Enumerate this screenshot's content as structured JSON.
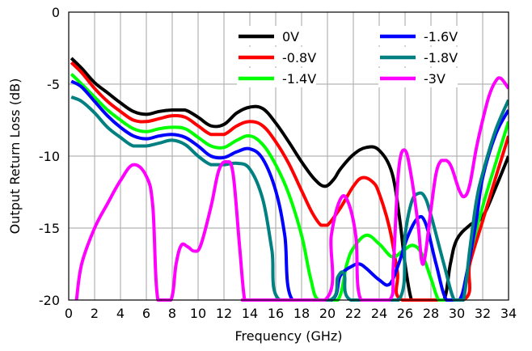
{
  "chart_data": {
    "type": "line",
    "title": "",
    "xlabel": "Frequency (GHz)",
    "ylabel": "Output Return Loss (dB)",
    "xlim": [
      0,
      34
    ],
    "ylim": [
      -20,
      0
    ],
    "xticks": [
      0,
      2,
      4,
      6,
      8,
      10,
      12,
      14,
      16,
      18,
      20,
      22,
      24,
      26,
      28,
      30,
      32,
      34
    ],
    "yticks": [
      0,
      -5,
      -10,
      -15,
      -20
    ],
    "grid": true,
    "legend_position": "top-right",
    "series": [
      {
        "name": "0V",
        "color": "#000000",
        "x": [
          0.2,
          1,
          2,
          3,
          4,
          5,
          6,
          7,
          8,
          9,
          10,
          11,
          12,
          13,
          14,
          15,
          16,
          17,
          18,
          19,
          19.8,
          20.5,
          21,
          22,
          23,
          24,
          25,
          25.6,
          26,
          26.5,
          27,
          28,
          29,
          29.5,
          30,
          31,
          32,
          33,
          34
        ],
        "y": [
          -3.2,
          -3.9,
          -4.9,
          -5.6,
          -6.3,
          -6.9,
          -7.1,
          -6.9,
          -6.8,
          -6.8,
          -7.3,
          -7.9,
          -7.8,
          -7.0,
          -6.6,
          -6.7,
          -7.7,
          -9.0,
          -10.4,
          -11.6,
          -12.1,
          -11.6,
          -10.9,
          -9.9,
          -9.4,
          -9.6,
          -11.2,
          -14.5,
          -17.5,
          -20.0,
          -20.0,
          -20.0,
          -20.0,
          -17.5,
          -15.8,
          -14.8,
          -14.2,
          -12.2,
          -10.0
        ]
      },
      {
        "name": "-0.8V",
        "color": "#ff0000",
        "x": [
          0.2,
          1,
          2,
          3,
          4,
          5,
          6,
          7,
          8,
          9,
          10,
          11,
          12,
          13,
          14,
          15,
          16,
          17,
          18,
          18.8,
          19.5,
          20,
          21,
          22,
          22.7,
          23.5,
          24,
          24.8,
          25.4,
          25.8,
          30.5,
          31,
          32,
          33,
          34
        ],
        "y": [
          -3.5,
          -4.2,
          -5.3,
          -6.2,
          -6.9,
          -7.5,
          -7.6,
          -7.4,
          -7.2,
          -7.3,
          -7.9,
          -8.5,
          -8.5,
          -7.9,
          -7.6,
          -7.9,
          -9.0,
          -10.5,
          -12.4,
          -13.9,
          -14.8,
          -14.8,
          -13.6,
          -12.1,
          -11.5,
          -11.8,
          -12.6,
          -15.0,
          -18.0,
          -20.0,
          -20.0,
          -17.5,
          -14.5,
          -11.5,
          -8.6
        ]
      },
      {
        "name": "-1.4V",
        "color": "#00ff00",
        "x": [
          0.2,
          1,
          2,
          3,
          4,
          5,
          6,
          7,
          8,
          9,
          10,
          11,
          12,
          13,
          14,
          15,
          16,
          17,
          18,
          18.7,
          19.3,
          20.8,
          21.5,
          22,
          23,
          24,
          25,
          25.8,
          26.6,
          27.3,
          28,
          28.6,
          29.2,
          30.4,
          31,
          32,
          33,
          34
        ],
        "y": [
          -4.3,
          -5.0,
          -5.9,
          -6.8,
          -7.5,
          -8.1,
          -8.3,
          -8.1,
          -8.0,
          -8.1,
          -8.7,
          -9.3,
          -9.4,
          -8.9,
          -8.6,
          -9.2,
          -10.6,
          -12.6,
          -15.5,
          -18.5,
          -20.0,
          -20.0,
          -17.5,
          -16.4,
          -15.5,
          -16.1,
          -17.0,
          -16.6,
          -16.2,
          -16.8,
          -18.5,
          -20.0,
          -20.0,
          -20.0,
          -17.0,
          -13.5,
          -10.5,
          -7.6
        ]
      },
      {
        "name": "-1.6V",
        "color": "#0000ff",
        "x": [
          0.2,
          1,
          2,
          3,
          4,
          5,
          6,
          7,
          8,
          9,
          10,
          11,
          12,
          13,
          14,
          15,
          16,
          16.7,
          17.3,
          20.3,
          21,
          22,
          22.5,
          23,
          24,
          24.8,
          25.5,
          26.2,
          27,
          27.6,
          28.4,
          29.2,
          30.2,
          30.8,
          31.5,
          32,
          33,
          34
        ],
        "y": [
          -4.8,
          -5.2,
          -6.2,
          -7.2,
          -8.0,
          -8.6,
          -8.8,
          -8.6,
          -8.5,
          -8.7,
          -9.3,
          -10.0,
          -10.1,
          -9.7,
          -9.5,
          -10.2,
          -12.4,
          -15.5,
          -20.0,
          -20.0,
          -18.3,
          -17.6,
          -17.5,
          -17.8,
          -18.6,
          -18.9,
          -17.5,
          -15.6,
          -14.3,
          -14.7,
          -17.5,
          -20.0,
          -20.0,
          -18.0,
          -14.5,
          -11.5,
          -8.5,
          -6.8
        ]
      },
      {
        "name": "-1.8V",
        "color": "#008080",
        "x": [
          0.2,
          1,
          2,
          3,
          4,
          5,
          6,
          7,
          8,
          9,
          10,
          11,
          12,
          13,
          14,
          15,
          15.7,
          16.3,
          20.2,
          20.8,
          21.3,
          21.8,
          25.5,
          26,
          26.5,
          27,
          27.5,
          28,
          29,
          29.8,
          30.5,
          31,
          31.5,
          32,
          33,
          34
        ],
        "y": [
          -5.9,
          -6.2,
          -7.0,
          -8.0,
          -8.7,
          -9.3,
          -9.3,
          -9.1,
          -8.9,
          -9.2,
          -10.0,
          -10.6,
          -10.6,
          -10.5,
          -10.9,
          -13.0,
          -16.5,
          -20.0,
          -20.0,
          -18.4,
          -18.2,
          -20.0,
          -20.0,
          -15.5,
          -13.2,
          -12.6,
          -12.8,
          -14.1,
          -17.5,
          -20.0,
          -20.0,
          -16.5,
          -13.2,
          -11.2,
          -8.2,
          -6.1
        ]
      },
      {
        "name": "-3V",
        "color": "#ff00ff",
        "x": [
          0.6,
          1,
          2,
          3,
          4,
          5,
          6,
          6.5,
          6.9,
          7.9,
          8.3,
          8.7,
          9.2,
          9.7,
          10.2,
          11,
          11.6,
          12.2,
          12.7,
          13.2,
          13.6,
          14,
          19.8,
          20.3,
          21,
          21.6,
          22.2,
          22.6,
          24.8,
          25.1,
          25.5,
          26,
          26.5,
          27,
          27.4,
          28,
          28.4,
          28.8,
          29.2,
          29.6,
          30.2,
          30.6,
          31,
          31.5,
          32,
          32.5,
          33,
          33.4,
          34
        ],
        "y": [
          -20.0,
          -17.5,
          -15.0,
          -13.3,
          -11.7,
          -10.6,
          -11.4,
          -13.5,
          -20.0,
          -20.0,
          -17.5,
          -16.2,
          -16.3,
          -16.6,
          -16.2,
          -13.5,
          -11.0,
          -10.4,
          -11.2,
          -16.2,
          -20.0,
          -20.0,
          -20.0,
          -15.5,
          -13.0,
          -13.2,
          -15.6,
          -20.0,
          -20.0,
          -17.5,
          -11.0,
          -9.6,
          -11.5,
          -14.7,
          -17.5,
          -13.7,
          -11.2,
          -10.3,
          -10.3,
          -10.8,
          -12.4,
          -12.8,
          -12.0,
          -9.5,
          -7.5,
          -5.8,
          -4.8,
          -4.6,
          -5.3
        ]
      }
    ]
  }
}
